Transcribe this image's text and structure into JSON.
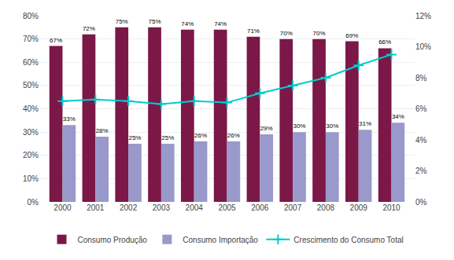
{
  "chart_data": {
    "type": "bar",
    "categories": [
      "2000",
      "2001",
      "2002",
      "2003",
      "2004",
      "2005",
      "2006",
      "2007",
      "2008",
      "2009",
      "2010"
    ],
    "series": [
      {
        "name": "Consumo Produção",
        "color": "#7B1848",
        "values": [
          67,
          72,
          75,
          75,
          74,
          74,
          71,
          70,
          70,
          69,
          66
        ],
        "value_labels": [
          "67%",
          "72%",
          "75%",
          "75%",
          "74%",
          "74%",
          "71%",
          "70%",
          "70%",
          "69%",
          "66%"
        ]
      },
      {
        "name": "Consumo Importação",
        "color": "#9999CC",
        "values": [
          33,
          28,
          25,
          25,
          26,
          26,
          29,
          30,
          30,
          31,
          34
        ],
        "value_labels": [
          "33%",
          "28%",
          "25%",
          "25%",
          "26%",
          "26%",
          "29%",
          "30%",
          "30%",
          "31%",
          "34%"
        ]
      },
      {
        "name": "Crescimento do Consumo Total",
        "type": "line",
        "color": "#00CCCC",
        "marker": "plus",
        "axis": "y2",
        "values": [
          6.5,
          6.6,
          6.5,
          6.3,
          6.5,
          6.4,
          7.0,
          7.5,
          8.0,
          8.8,
          9.5
        ]
      }
    ],
    "ylim": [
      0,
      80
    ],
    "yticks": [
      {
        "value": 0,
        "label": "0%"
      },
      {
        "value": 10,
        "label": "10%"
      },
      {
        "value": 20,
        "label": "20%"
      },
      {
        "value": 30,
        "label": "30%"
      },
      {
        "value": 40,
        "label": "40%"
      },
      {
        "value": 50,
        "label": "50%"
      },
      {
        "value": 60,
        "label": "60%"
      },
      {
        "value": 70,
        "label": "70%"
      },
      {
        "value": 80,
        "label": "80%"
      }
    ],
    "y2lim": [
      0,
      12
    ],
    "y2ticks": [
      {
        "value": 0,
        "label": "0%"
      },
      {
        "value": 2,
        "label": "2%"
      },
      {
        "value": 4,
        "label": "4%"
      },
      {
        "value": 6,
        "label": "6%"
      },
      {
        "value": 8,
        "label": "8%"
      },
      {
        "value": 10,
        "label": "10%"
      },
      {
        "value": 12,
        "label": "12%"
      }
    ],
    "grid": true,
    "data_labels": true,
    "legend": "bottom"
  }
}
